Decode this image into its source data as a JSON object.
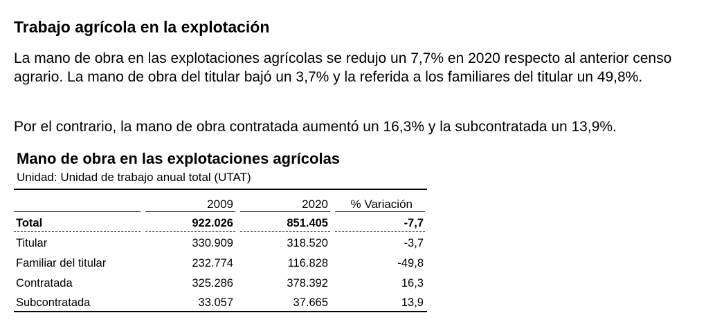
{
  "heading": "Trabajo agrícola en la explotación",
  "paragraphs": [
    "La mano de obra en las explotaciones agrícolas se redujo un 7,7% en 2020 respecto al anterior censo agrario. La mano de obra del titular bajó un 3,7% y la referida a los familiares del titular un 49,8%.",
    "Por el contrario, la mano de obra contratada aumentó un 16,3% y la subcontratada un 13,9%."
  ],
  "table": {
    "title": "Mano de obra en las explotaciones agrícolas",
    "unit": "Unidad: Unidad de trabajo anual total (UTAT)",
    "headers": [
      "",
      "2009",
      "2020",
      "% Variación"
    ],
    "rows": [
      [
        "Total",
        "922.026",
        "851.405",
        "-7,7"
      ],
      [
        "Titular",
        "330.909",
        "318.520",
        "-3,7"
      ],
      [
        "Familiar del titular",
        "232.774",
        "116.828",
        "-49,8"
      ],
      [
        "Contratada",
        "325.286",
        "378.392",
        "16,3"
      ],
      [
        "Subcontratada",
        "33.057",
        "37.665",
        "13,9"
      ]
    ]
  }
}
